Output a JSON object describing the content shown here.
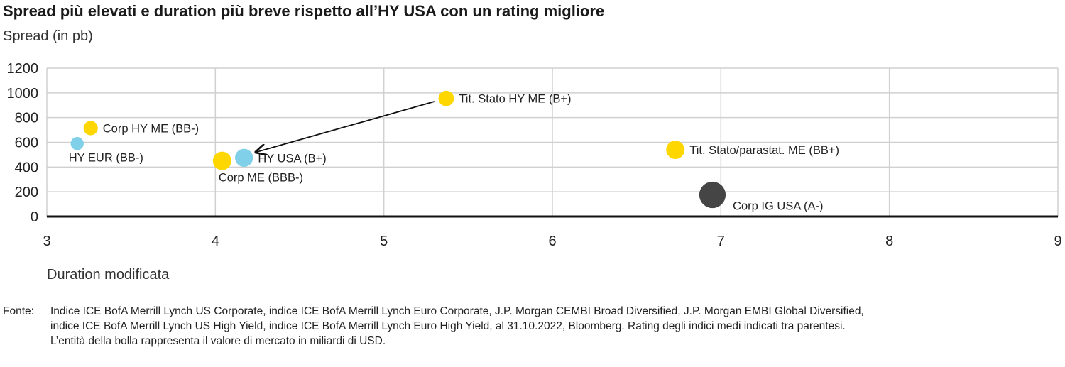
{
  "chart_data": {
    "type": "scatter",
    "title": "Spread più elevati e duration più breve rispetto all’HY USA con un rating migliore",
    "ylabel": "Spread (in pb)",
    "xlabel": "Duration modificata",
    "xlim": [
      3,
      9
    ],
    "ylim": [
      0,
      1200
    ],
    "xticks": [
      3,
      4,
      5,
      6,
      7,
      8,
      9
    ],
    "yticks": [
      0,
      200,
      400,
      600,
      800,
      1000,
      1200
    ],
    "grid": true,
    "colors": {
      "yellow": "#FFD700",
      "blue": "#7FD0E8",
      "dark": "#454545",
      "grid": "#d0d0d0",
      "axis": "#111111"
    },
    "points": [
      {
        "label": "HY EUR (BB-)",
        "x": 3.18,
        "y": 590,
        "color": "#7FD0E8",
        "size": 0.5,
        "label_pos": "below"
      },
      {
        "label": "Corp HY ME (BB-)",
        "x": 3.26,
        "y": 715,
        "color": "#FFD700",
        "size": 0.6,
        "label_pos": "right"
      },
      {
        "label": "Corp ME (BBB-)",
        "x": 4.04,
        "y": 450,
        "color": "#FFD700",
        "size": 1.0,
        "label_pos": "below"
      },
      {
        "label": "HY USA (B+)",
        "x": 4.17,
        "y": 475,
        "color": "#7FD0E8",
        "size": 0.95,
        "label_pos": "right"
      },
      {
        "label": "Tit. Stato HY ME (B+)",
        "x": 5.37,
        "y": 955,
        "color": "#FFD700",
        "size": 0.7,
        "label_pos": "right"
      },
      {
        "label": "Tit. Stato/parastat. ME (BB+)",
        "x": 6.73,
        "y": 540,
        "color": "#FFD700",
        "size": 1.0,
        "label_pos": "right"
      },
      {
        "label": "Corp IG USA (A-)",
        "x": 6.95,
        "y": 175,
        "color": "#454545",
        "size": 2.05,
        "label_pos": "right-below"
      }
    ],
    "arrow": {
      "from": [
        5.3,
        930
      ],
      "to": [
        4.24,
        520
      ]
    }
  },
  "source": {
    "label": "Fonte:",
    "lines": [
      "Indice ICE BofA Merrill Lynch US Corporate, indice ICE BofA Merrill Lynch Euro Corporate, J.P. Morgan CEMBI Broad Diversified, J.P. Morgan EMBI Global Diversified,",
      "indice ICE BofA Merrill Lynch US High Yield, indice ICE BofA Merrill Lynch Euro High Yield, al 31.10.2022, Bloomberg. Rating degli indici medi indicati tra parentesi.",
      "L’entità della bolla rappresenta il valore di mercato in miliardi di USD."
    ]
  }
}
